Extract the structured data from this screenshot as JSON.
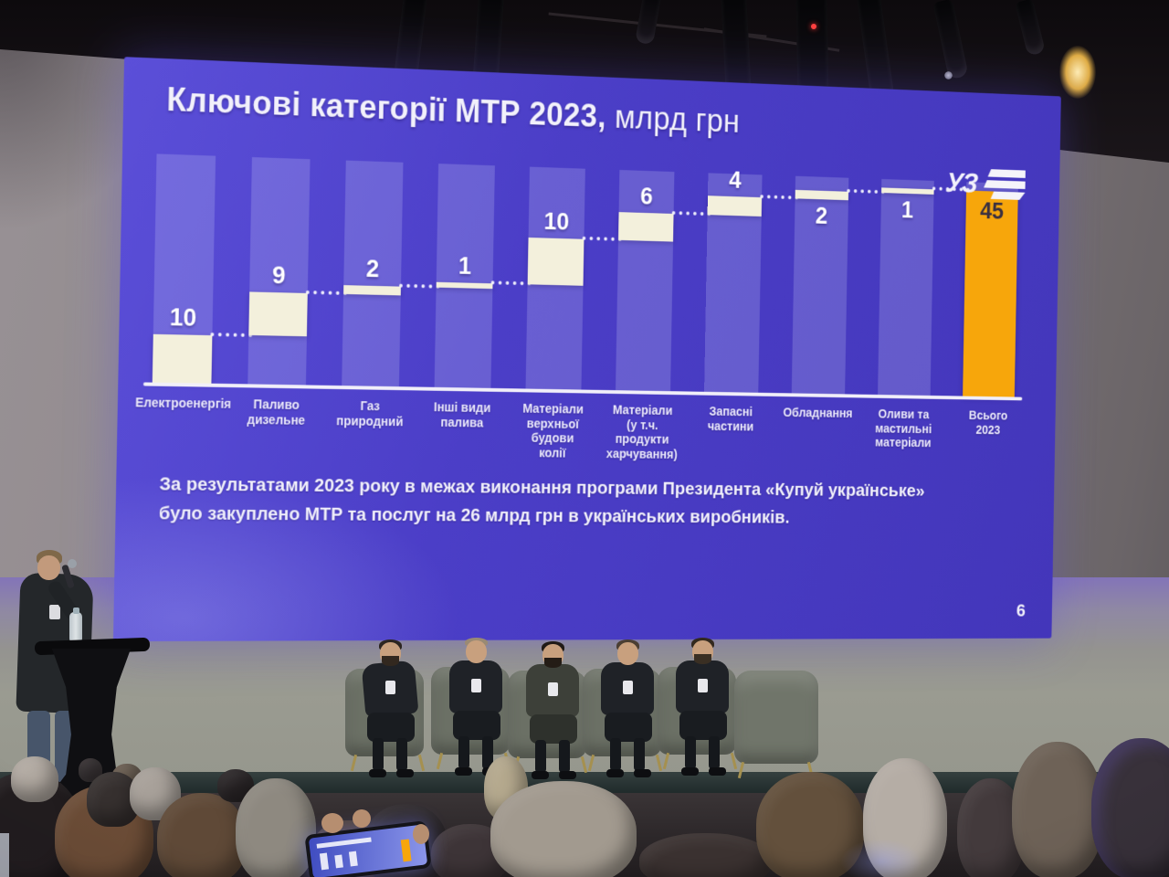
{
  "slide": {
    "title": {
      "bold": "Ключові категорії МТР 2023,",
      "regular": " млрд грн"
    },
    "logo_text": "УЗ",
    "footnote": {
      "line1": "За результатами 2023 року в межах виконання програми Президента «Купуй українське»",
      "line2_pre": "було закуплено МТР та послуг на ",
      "line2_bold": "26 млрд грн",
      "line2_post": " в українських виробників."
    },
    "page_number": "6"
  },
  "chart_data": {
    "type": "bar",
    "subtype": "waterfall",
    "title": "Ключові категорії МТР 2023, млрд грн",
    "xlabel": "",
    "ylabel": "млрд грн",
    "ylim": [
      0,
      47
    ],
    "grid": false,
    "legend": false,
    "categories": [
      "Електроенергія",
      "Паливо дизельне",
      "Газ природний",
      "Інші види палива",
      "Матеріали верхньої будови колії",
      "Матеріали (у т.ч. продукти харчування)",
      "Запасні частини",
      "Обладнання",
      "Оливи та мастильні матеріали",
      "Всього 2023"
    ],
    "categories_lines": [
      [
        "Електроенергія"
      ],
      [
        "Паливо",
        "дизельне"
      ],
      [
        "Газ",
        "природний"
      ],
      [
        "Інші види",
        "палива"
      ],
      [
        "Матеріали",
        "верхньої",
        "будови",
        "колії"
      ],
      [
        "Матеріали",
        "(у т.ч. продукти",
        "харчування)"
      ],
      [
        "Запасні",
        "частини"
      ],
      [
        "Обладнання"
      ],
      [
        "Оливи та",
        "мастильні",
        "матеріали"
      ],
      [
        "Всього",
        "2023"
      ]
    ],
    "values": [
      10,
      9,
      2,
      1,
      10,
      6,
      4,
      2,
      1,
      45
    ],
    "segment_start": [
      0,
      10,
      19,
      21,
      22,
      32,
      38,
      42,
      44,
      0
    ],
    "segment_end": [
      10,
      19,
      21,
      22,
      32,
      38,
      42,
      44,
      45,
      45
    ],
    "roles": [
      "delta",
      "delta",
      "delta",
      "delta",
      "delta",
      "delta",
      "delta",
      "delta",
      "delta",
      "total"
    ],
    "total_value": 45,
    "connector_style": "dotted",
    "colors": {
      "slide_background": "#4b3ec7",
      "track": "rgba(226,229,255,0.20)",
      "delta_segment": "#f3f0dc",
      "total_bar": "#f7a60b",
      "value_label": "#ffffff",
      "total_value_label": "#3a3040",
      "connector": "rgba(248,248,255,0.95)",
      "axis": "#f1eff9",
      "category_label": "#eceafc"
    }
  }
}
